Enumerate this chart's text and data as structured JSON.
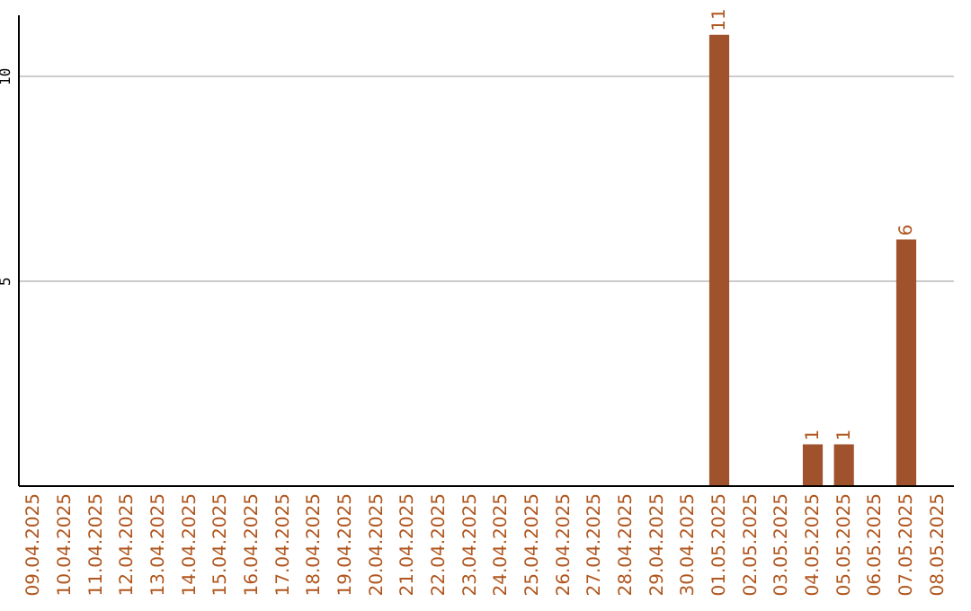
{
  "chart_data": {
    "type": "bar",
    "categories": [
      "09.04.2025",
      "10.04.2025",
      "11.04.2025",
      "12.04.2025",
      "13.04.2025",
      "14.04.2025",
      "15.04.2025",
      "16.04.2025",
      "17.04.2025",
      "18.04.2025",
      "19.04.2025",
      "20.04.2025",
      "21.04.2025",
      "22.04.2025",
      "23.04.2025",
      "24.04.2025",
      "25.04.2025",
      "26.04.2025",
      "27.04.2025",
      "28.04.2025",
      "29.04.2025",
      "30.04.2025",
      "01.05.2025",
      "02.05.2025",
      "03.05.2025",
      "04.05.2025",
      "05.05.2025",
      "06.05.2025",
      "07.05.2025",
      "08.05.2025"
    ],
    "values": [
      0,
      0,
      0,
      0,
      0,
      0,
      0,
      0,
      0,
      0,
      0,
      0,
      0,
      0,
      0,
      0,
      0,
      0,
      0,
      0,
      0,
      0,
      11,
      0,
      0,
      1,
      1,
      0,
      6,
      0
    ],
    "value_labels": [
      null,
      null,
      null,
      null,
      null,
      null,
      null,
      null,
      null,
      null,
      null,
      null,
      null,
      null,
      null,
      null,
      null,
      null,
      null,
      null,
      null,
      null,
      "11",
      null,
      null,
      "1",
      "1",
      null,
      "6",
      null
    ],
    "color": "#a0522d",
    "ylim": [
      0,
      11.5
    ],
    "yticks": [
      5,
      10
    ],
    "grid": "y"
  }
}
